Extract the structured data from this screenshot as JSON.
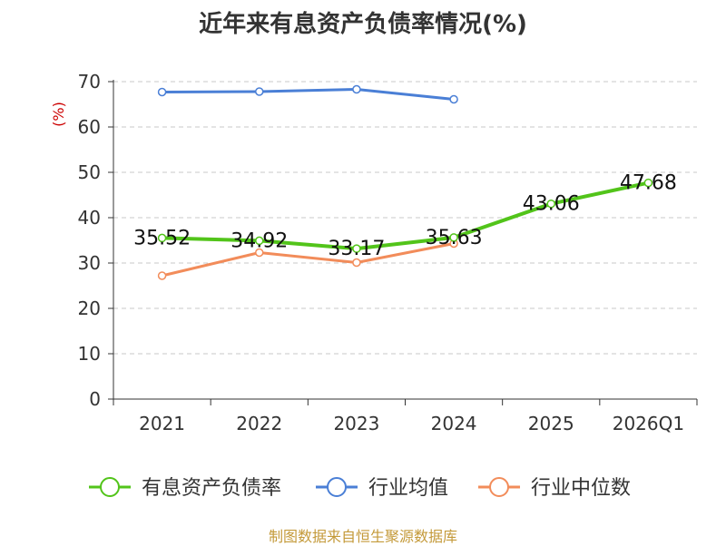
{
  "chart_data": {
    "type": "line",
    "title": "近年来有息资产负债率情况(%)",
    "ylabel": "(%)",
    "xlabel": "",
    "categories": [
      "2021",
      "2022",
      "2023",
      "2024",
      "2025",
      "2026Q1"
    ],
    "ylim": [
      0,
      70
    ],
    "yticks": [
      0,
      10,
      20,
      30,
      40,
      50,
      60,
      70
    ],
    "grid": true,
    "legend_position": "bottom",
    "series": [
      {
        "name": "有息资产负债率",
        "color": "#52c41a",
        "values": [
          35.52,
          34.92,
          33.17,
          35.63,
          43.06,
          47.68
        ],
        "labels": [
          "35.52",
          "34.92",
          "33.17",
          "35.63",
          "43.06",
          "47.68"
        ]
      },
      {
        "name": "行业均值",
        "color": "#4a7fd6",
        "values": [
          67.7,
          67.8,
          68.3,
          66.1,
          null,
          null
        ]
      },
      {
        "name": "行业中位数",
        "color": "#f28c5a",
        "values": [
          27.2,
          32.3,
          30.1,
          34.3,
          null,
          null
        ]
      }
    ]
  },
  "source": "制图数据来自恒生聚源数据库"
}
